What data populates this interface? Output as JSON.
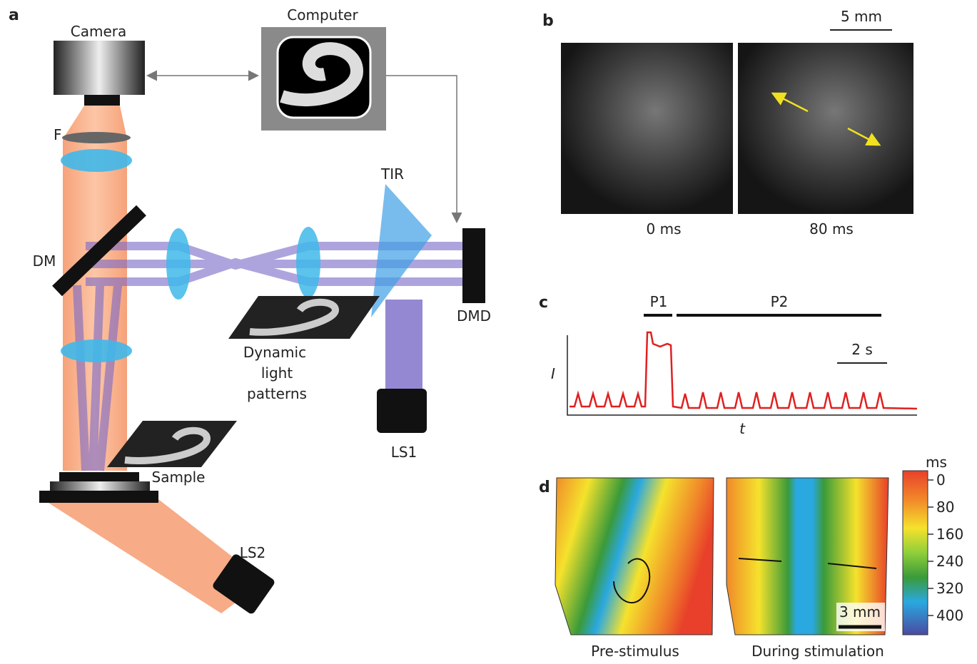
{
  "panel_a": {
    "label": "a",
    "camera": "Camera",
    "computer": "Computer",
    "filter": "F",
    "dichroic_mirror": "DM",
    "prism": "TIR",
    "dmd": "DMD",
    "patterns": [
      "Dynamic",
      "light",
      "patterns"
    ],
    "light_source_1": "LS1",
    "sample": "Sample",
    "light_source_2": "LS2"
  },
  "panel_b": {
    "label": "b",
    "scale_bar": "5 mm",
    "frames": [
      "0 ms",
      "80 ms"
    ]
  },
  "panel_c": {
    "label": "c",
    "phases": [
      "P1",
      "P2"
    ],
    "scale_bar": "2 s",
    "y_label": "I",
    "x_label": "t"
  },
  "panel_d": {
    "label": "d",
    "colorbar": {
      "unit": "ms",
      "ticks": [
        0,
        80,
        160,
        240,
        320,
        400
      ]
    },
    "scale_bar": "3 mm",
    "maps": [
      "Pre-stimulus",
      "During stimulation"
    ]
  }
}
